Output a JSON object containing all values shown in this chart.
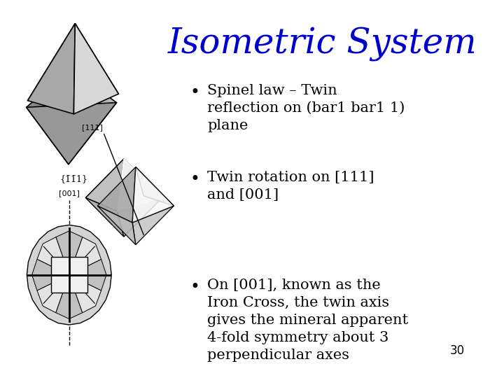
{
  "title": "Isometric System",
  "title_color": "#0000cc",
  "title_fontsize": 36,
  "background_color": "#ffffff",
  "bullet_points": [
    "Spinel law – Twin\nreflection on (bar1 bar1 1)\nplane",
    "Twin rotation on [111]\nand [001]",
    "On [001], known as the\nIron Cross, the twin axis\ngives the mineral apparent\n4-fold symmetry about 3\nperpendicular axes"
  ],
  "bullet_fontsize": 15,
  "bullet_color": "#000000",
  "label_top": "{1̄1̄1}",
  "label_mid": "[111]",
  "label_bot": "[001]",
  "page_number": "30",
  "page_number_fontsize": 12,
  "page_number_color": "#000000"
}
